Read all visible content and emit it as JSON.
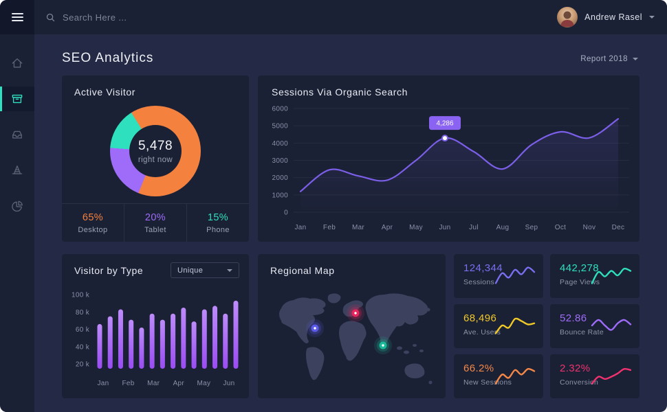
{
  "topbar": {
    "search_placeholder": "Search Here ...",
    "user_name": "Andrew Rasel"
  },
  "sidebar": {
    "items": [
      {
        "icon": "home",
        "active": false
      },
      {
        "icon": "archive-box",
        "active": true
      },
      {
        "icon": "inbox-tray",
        "active": false
      },
      {
        "icon": "traffic-cone",
        "active": false
      },
      {
        "icon": "pie-chart",
        "active": false
      }
    ]
  },
  "header": {
    "title": "SEO Analytics",
    "report_label": "Report 2018"
  },
  "chart_data": [
    {
      "id": "active_visitor_donut",
      "type": "pie",
      "title": "Active Visitor",
      "center_value": "5,478",
      "center_label": "right now",
      "slices": [
        {
          "label": "Desktop",
          "value": 65,
          "display": "65%",
          "color": "#f5813e"
        },
        {
          "label": "Tablet",
          "value": 20,
          "display": "20%",
          "color": "#9e6cf8"
        },
        {
          "label": "Phone",
          "value": 15,
          "display": "15%",
          "color": "#2ee0bd"
        }
      ]
    },
    {
      "id": "sessions_line",
      "type": "line",
      "title": "Sessions Via Organic Search",
      "x": [
        "Jan",
        "Feb",
        "Mar",
        "Apr",
        "May",
        "Jun",
        "Jul",
        "Aug",
        "Sep",
        "Oct",
        "Nov",
        "Dec"
      ],
      "values": [
        1200,
        2450,
        2100,
        1850,
        3000,
        4286,
        3500,
        2500,
        3900,
        4650,
        4300,
        5400
      ],
      "ylim": [
        0,
        6000
      ],
      "yticks": [
        0,
        1000,
        2000,
        3000,
        4000,
        5000,
        6000
      ],
      "line_color": "#7b5fe8",
      "tooltip": {
        "index": 5,
        "label": "4,286",
        "bg": "#8a63f2"
      },
      "grid": true,
      "legend": "none"
    },
    {
      "id": "visitor_by_type_bars",
      "type": "bar",
      "title": "Visitor by Type",
      "filter_label": "Unique",
      "month_labels": [
        "Jan",
        "Feb",
        "Mar",
        "Apr",
        "May",
        "Jun"
      ],
      "values_k": [
        66,
        75,
        83,
        71,
        62,
        78,
        71,
        78,
        85,
        69,
        83,
        87,
        78,
        93
      ],
      "ylim_k": [
        20,
        100
      ],
      "ytick_labels": [
        "100 k",
        "80 k",
        "60 k",
        "40 k",
        "20 k"
      ],
      "bar_color_top": "#bd8cfa",
      "bar_color_bottom": "#9a4cf2"
    }
  ],
  "map": {
    "title": "Regional Map",
    "markers": [
      {
        "region": "north-america",
        "color": "#5b5be8"
      },
      {
        "region": "europe",
        "color": "#e8265e"
      },
      {
        "region": "south-asia",
        "color": "#19b898"
      }
    ]
  },
  "stats": [
    {
      "value": "124,344",
      "label": "Sessions",
      "color": "#7a6ff0",
      "spark": [
        15,
        6,
        10,
        3,
        7,
        1,
        5
      ]
    },
    {
      "value": "442,278",
      "label": "Page Views",
      "color": "#2ee0bd",
      "spark": [
        15,
        5,
        9,
        4,
        8,
        2,
        4
      ]
    },
    {
      "value": "68,496",
      "label": "Ave. Users",
      "color": "#f0c929",
      "spark": [
        15,
        8,
        10,
        2,
        4,
        7,
        6
      ]
    },
    {
      "value": "52.86",
      "label": "Bounce Rate",
      "color": "#9e6cf8",
      "spark": [
        8,
        3,
        8,
        12,
        6,
        3,
        7
      ]
    },
    {
      "value": "66.2%",
      "label": "New Sessions",
      "color": "#f58747",
      "spark": [
        15,
        7,
        10,
        3,
        7,
        2,
        4
      ]
    },
    {
      "value": "2.32%",
      "label": "Conversion",
      "color": "#f0326e",
      "spark": [
        15,
        9,
        11,
        9,
        6,
        2,
        3
      ]
    }
  ]
}
